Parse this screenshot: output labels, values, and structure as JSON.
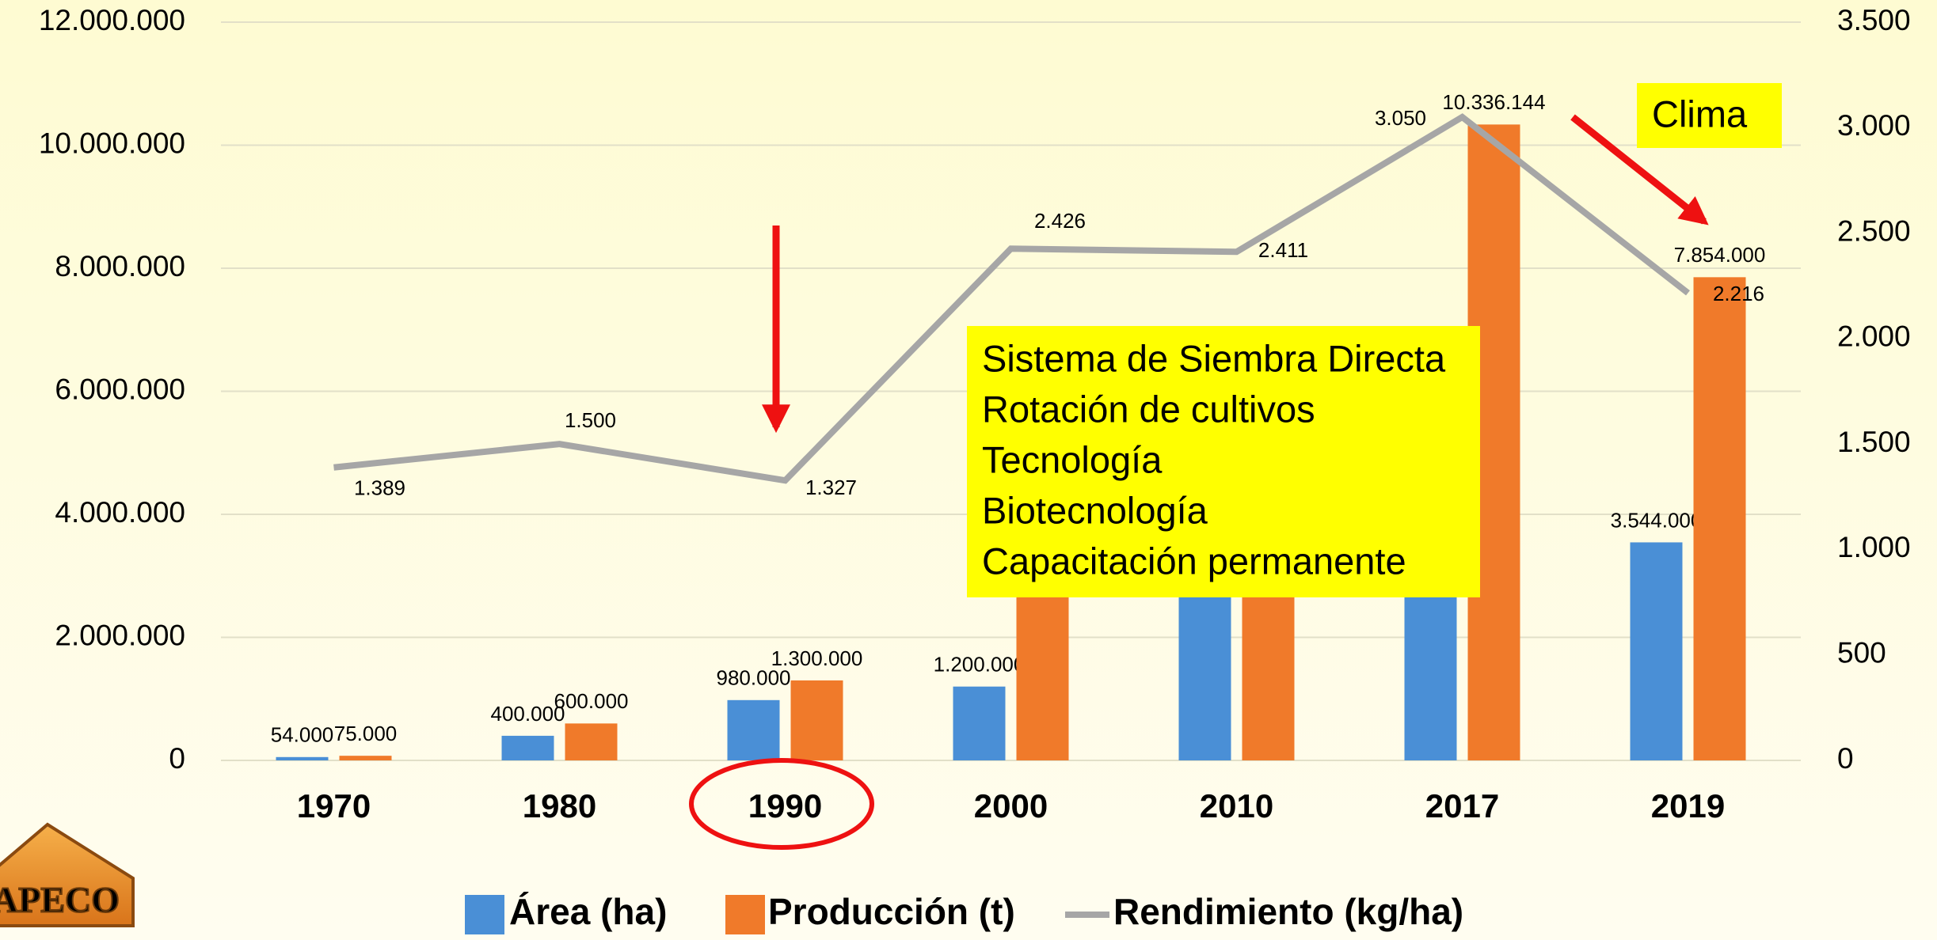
{
  "chart_data": {
    "type": "bar",
    "categories": [
      "1970",
      "1980",
      "1990",
      "2000",
      "2010",
      "2017",
      "2019"
    ],
    "series": [
      {
        "name": "Área (ha)",
        "color": "#4a8fd6",
        "values": [
          54000,
          400000,
          980000,
          1200000,
          2700000,
          3390000,
          3544000
        ],
        "value_labels": [
          "54.000",
          "400.000",
          "980.000",
          "1.200.000",
          null,
          null,
          "3.544.000"
        ]
      },
      {
        "name": "Producción (t)",
        "color": "#f07a2a",
        "values": [
          75000,
          600000,
          1300000,
          2900000,
          6500000,
          10336144,
          7854000
        ],
        "value_labels": [
          "75.000",
          "600.000",
          "1.300.000",
          null,
          null,
          "10.336.144",
          "7.854.000"
        ]
      },
      {
        "name": "Rendimiento (kg/ha)",
        "type": "line",
        "axis": "y2",
        "color": "#a6a6a6",
        "values": [
          1389,
          1500,
          1327,
          2426,
          2411,
          3050,
          2216
        ],
        "value_labels": [
          "1.389",
          "1.500",
          "1.327",
          "2.426",
          "2.411",
          "3.050",
          "2.216"
        ]
      }
    ],
    "ylim": [
      0,
      12000000
    ],
    "yticks": [
      0,
      {
        "value": 2000000,
        "label": "2.000.000"
      },
      {
        "value": 4000000,
        "label": "4.000.000"
      },
      {
        "value": 6000000,
        "label": "6.000.000"
      },
      {
        "value": 8000000,
        "label": "8.000.000"
      },
      {
        "value": 10000000,
        "label": "10.000.000"
      },
      {
        "value": 12000000,
        "label": "12.000.000"
      }
    ],
    "y2lim": [
      0,
      3500
    ],
    "y2ticks": [
      0,
      500,
      {
        "value": 1000,
        "label": "1.000"
      },
      {
        "value": 1500,
        "label": "1.500"
      },
      {
        "value": 2000,
        "label": "2.000"
      },
      {
        "value": 2500,
        "label": "2.500"
      },
      {
        "value": 3000,
        "label": "3.000"
      },
      {
        "value": 3500,
        "label": "3.500"
      }
    ],
    "grid": true,
    "legend": "bottom",
    "annotations": {
      "factors": [
        "Sistema de Siembra Directa",
        "Rotación de cultivos",
        "Tecnología",
        "Biotecnología",
        "Capacitación permanente"
      ],
      "climate": "Clima"
    },
    "logo": "APECO"
  }
}
